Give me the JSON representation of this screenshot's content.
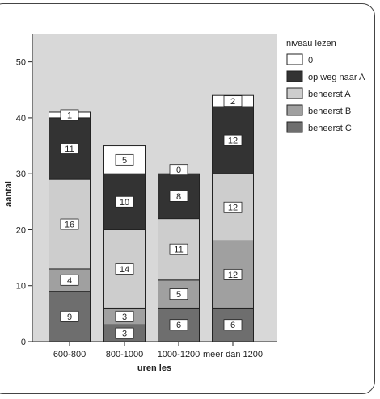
{
  "chart_data": {
    "type": "bar",
    "stacked": true,
    "categories": [
      "600-800",
      "800-1000",
      "1000-1200",
      "meer dan 1200"
    ],
    "xlabel": "uren les",
    "ylabel": "aantal",
    "ylim": [
      0,
      55
    ],
    "yticks": [
      0,
      10,
      20,
      30,
      40,
      50
    ],
    "grid": false,
    "legend_title": "niveau lezen",
    "legend_position": "right",
    "series": [
      {
        "name": "beheerst C",
        "color": "#6e6e6e",
        "values": [
          9,
          3,
          6,
          6
        ]
      },
      {
        "name": "beheerst B",
        "color": "#a0a0a0",
        "values": [
          4,
          3,
          5,
          12
        ]
      },
      {
        "name": "beheerst A",
        "color": "#cdcdcd",
        "values": [
          16,
          14,
          11,
          12
        ]
      },
      {
        "name": "op weg naar A",
        "color": "#333333",
        "values": [
          11,
          10,
          8,
          12
        ]
      },
      {
        "name": "0",
        "color": "#ffffff",
        "values": [
          1,
          5,
          0,
          2
        ]
      }
    ],
    "legend_order": [
      "0",
      "op weg naar A",
      "beheerst A",
      "beheerst B",
      "beheerst C"
    ],
    "plot_background": "#d8d8d8"
  }
}
